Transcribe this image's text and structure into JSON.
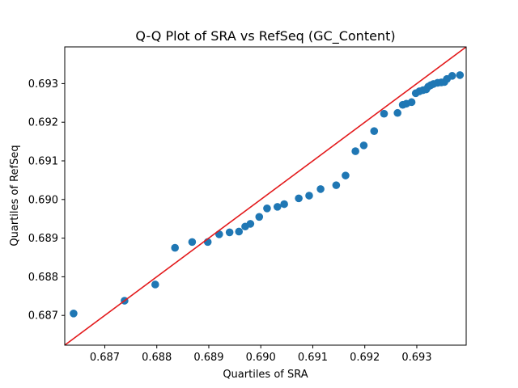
{
  "chart_data": {
    "type": "scatter",
    "title": "Q-Q Plot of SRA vs RefSeq (GC_Content)",
    "xlabel": "Quartiles of SRA",
    "ylabel": "Quartiles of RefSeq",
    "xlim": [
      0.68623,
      0.69395
    ],
    "ylim": [
      0.68623,
      0.69395
    ],
    "xticks": [
      "0.687",
      "0.688",
      "0.689",
      "0.690",
      "0.691",
      "0.692",
      "0.693"
    ],
    "yticks": [
      "0.687",
      "0.688",
      "0.689",
      "0.690",
      "0.691",
      "0.692",
      "0.693"
    ],
    "grid": false,
    "reference_line": {
      "description": "y = x",
      "color": "#e31a1c"
    },
    "marker_color": "#1f77b4",
    "points": [
      [
        0.6864,
        0.68705
      ],
      [
        0.68738,
        0.68738
      ],
      [
        0.68797,
        0.6878
      ],
      [
        0.68835,
        0.68875
      ],
      [
        0.68868,
        0.6889
      ],
      [
        0.68898,
        0.6889
      ],
      [
        0.6892,
        0.6891
      ],
      [
        0.6894,
        0.68915
      ],
      [
        0.68958,
        0.68917
      ],
      [
        0.6897,
        0.6893
      ],
      [
        0.6898,
        0.68937
      ],
      [
        0.68997,
        0.68955
      ],
      [
        0.69012,
        0.68977
      ],
      [
        0.69032,
        0.68981
      ],
      [
        0.69045,
        0.68988
      ],
      [
        0.69073,
        0.69003
      ],
      [
        0.69093,
        0.6901
      ],
      [
        0.69115,
        0.69027
      ],
      [
        0.69145,
        0.69037
      ],
      [
        0.69163,
        0.69062
      ],
      [
        0.69182,
        0.69125
      ],
      [
        0.69198,
        0.6914
      ],
      [
        0.69218,
        0.69177
      ],
      [
        0.69237,
        0.69222
      ],
      [
        0.69263,
        0.69224
      ],
      [
        0.69273,
        0.69245
      ],
      [
        0.6928,
        0.69248
      ],
      [
        0.6929,
        0.69252
      ],
      [
        0.69298,
        0.69275
      ],
      [
        0.69305,
        0.6928
      ],
      [
        0.69312,
        0.69283
      ],
      [
        0.69318,
        0.69285
      ],
      [
        0.69322,
        0.69292
      ],
      [
        0.69327,
        0.69296
      ],
      [
        0.69332,
        0.69299
      ],
      [
        0.6934,
        0.69302
      ],
      [
        0.69347,
        0.69303
      ],
      [
        0.69353,
        0.69304
      ],
      [
        0.69358,
        0.69312
      ],
      [
        0.69368,
        0.6932
      ],
      [
        0.69383,
        0.69322
      ]
    ]
  }
}
